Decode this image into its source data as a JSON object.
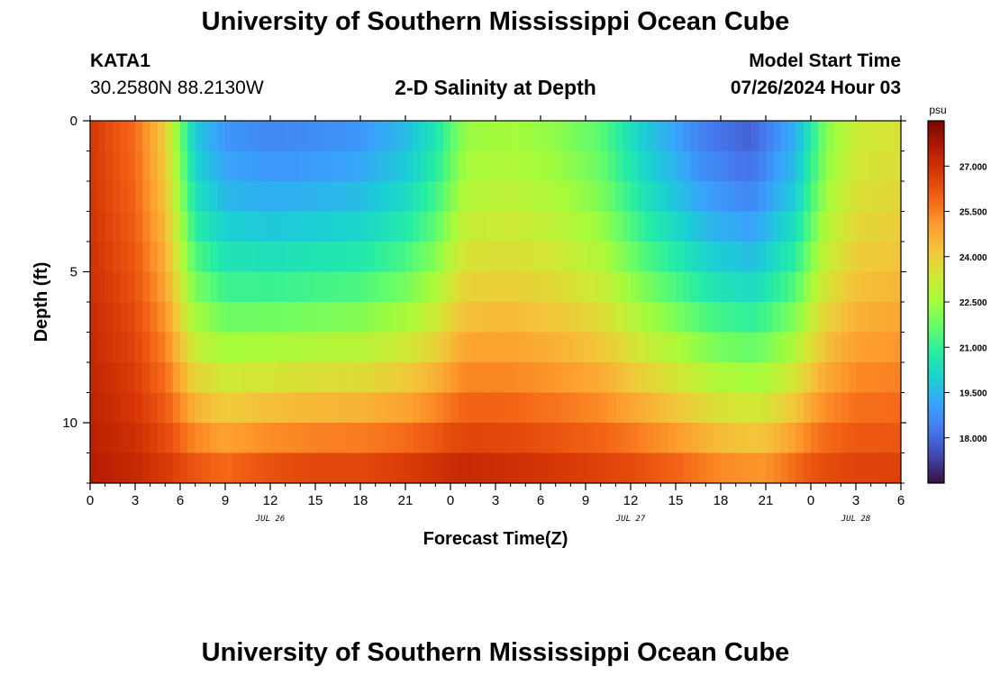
{
  "header": {
    "title": "University of Southern Mississippi Ocean Cube",
    "station_id": "KATA1",
    "station_coords": "30.2580N  88.2130W",
    "subtitle": "2-D Salinity at Depth",
    "model_label": "Model Start Time",
    "model_date": "07/26/2024 Hour 03"
  },
  "footer": {
    "title": "University of Southern Mississippi Ocean Cube"
  },
  "chart_data": {
    "type": "heatmap",
    "title": "2-D Salinity at Depth",
    "xlabel": "Forecast Time(Z)",
    "ylabel": "Depth (ft)",
    "x_unit": "hours since 07/26 00Z",
    "xlim": [
      0,
      54
    ],
    "ylim": [
      0,
      12
    ],
    "x_ticks": [
      {
        "x": 0,
        "label": "0"
      },
      {
        "x": 3,
        "label": "3"
      },
      {
        "x": 6,
        "label": "6"
      },
      {
        "x": 9,
        "label": "9"
      },
      {
        "x": 12,
        "label": "12"
      },
      {
        "x": 15,
        "label": "15"
      },
      {
        "x": 18,
        "label": "18"
      },
      {
        "x": 21,
        "label": "21"
      },
      {
        "x": 24,
        "label": "0"
      },
      {
        "x": 27,
        "label": "3"
      },
      {
        "x": 30,
        "label": "6"
      },
      {
        "x": 33,
        "label": "9"
      },
      {
        "x": 36,
        "label": "12"
      },
      {
        "x": 39,
        "label": "15"
      },
      {
        "x": 42,
        "label": "18"
      },
      {
        "x": 45,
        "label": "21"
      },
      {
        "x": 48,
        "label": "0"
      },
      {
        "x": 51,
        "label": "3"
      },
      {
        "x": 54,
        "label": "6"
      }
    ],
    "date_labels": [
      {
        "x": 12,
        "label": "JUL 26"
      },
      {
        "x": 36,
        "label": "JUL 27"
      },
      {
        "x": 51,
        "label": "JUL 28"
      }
    ],
    "y_ticks": [
      {
        "y": 0,
        "label": "0"
      },
      {
        "y": 5,
        "label": "5"
      },
      {
        "y": 10,
        "label": "10"
      }
    ],
    "depths": [
      0,
      1,
      2,
      3,
      4,
      5,
      6,
      7,
      8,
      9,
      10,
      11,
      12
    ],
    "surface_salinity_psu": [
      {
        "x": 0,
        "v": 26.8
      },
      {
        "x": 3,
        "v": 25.8
      },
      {
        "x": 5,
        "v": 24.0
      },
      {
        "x": 7,
        "v": 19.8
      },
      {
        "x": 9,
        "v": 18.8
      },
      {
        "x": 12,
        "v": 18.5
      },
      {
        "x": 15,
        "v": 18.6
      },
      {
        "x": 18,
        "v": 18.8
      },
      {
        "x": 21,
        "v": 19.5
      },
      {
        "x": 23,
        "v": 20.5
      },
      {
        "x": 25,
        "v": 22.3
      },
      {
        "x": 28,
        "v": 22.5
      },
      {
        "x": 31,
        "v": 22.2
      },
      {
        "x": 34,
        "v": 21.5
      },
      {
        "x": 37,
        "v": 19.8
      },
      {
        "x": 41,
        "v": 18.3
      },
      {
        "x": 44,
        "v": 17.8
      },
      {
        "x": 47,
        "v": 19.3
      },
      {
        "x": 49,
        "v": 22.0
      },
      {
        "x": 51,
        "v": 23.2
      },
      {
        "x": 54,
        "v": 23.5
      }
    ],
    "bottom_salinity_psu": [
      {
        "x": 0,
        "v": 27.6
      },
      {
        "x": 3,
        "v": 27.3
      },
      {
        "x": 6,
        "v": 26.8
      },
      {
        "x": 9,
        "v": 26.3
      },
      {
        "x": 12,
        "v": 26.8
      },
      {
        "x": 15,
        "v": 27.0
      },
      {
        "x": 18,
        "v": 27.0
      },
      {
        "x": 21,
        "v": 27.2
      },
      {
        "x": 24,
        "v": 27.5
      },
      {
        "x": 27,
        "v": 27.4
      },
      {
        "x": 30,
        "v": 27.2
      },
      {
        "x": 33,
        "v": 27.0
      },
      {
        "x": 36,
        "v": 26.8
      },
      {
        "x": 39,
        "v": 26.4
      },
      {
        "x": 42,
        "v": 25.8
      },
      {
        "x": 45,
        "v": 25.6
      },
      {
        "x": 48,
        "v": 26.6
      },
      {
        "x": 51,
        "v": 26.8
      },
      {
        "x": 54,
        "v": 26.8
      }
    ],
    "colorbar": {
      "unit": "psu",
      "range": [
        16.5,
        28.5
      ],
      "ticks": [
        {
          "v": 18.0,
          "label": "18.000"
        },
        {
          "v": 19.5,
          "label": "19.500"
        },
        {
          "v": 21.0,
          "label": "21.000"
        },
        {
          "v": 22.5,
          "label": "22.500"
        },
        {
          "v": 24.0,
          "label": "24.000"
        },
        {
          "v": 25.5,
          "label": "25.500"
        },
        {
          "v": 27.0,
          "label": "27.000"
        }
      ],
      "colors": [
        "#30123b",
        "#4145ab",
        "#4675ed",
        "#39a2fc",
        "#1bcfd4",
        "#24eca6",
        "#61fc6c",
        "#a4fc3b",
        "#d1e834",
        "#f3c63a",
        "#fe9b2d",
        "#f36315",
        "#d93806",
        "#b11901",
        "#7a0403"
      ]
    }
  }
}
